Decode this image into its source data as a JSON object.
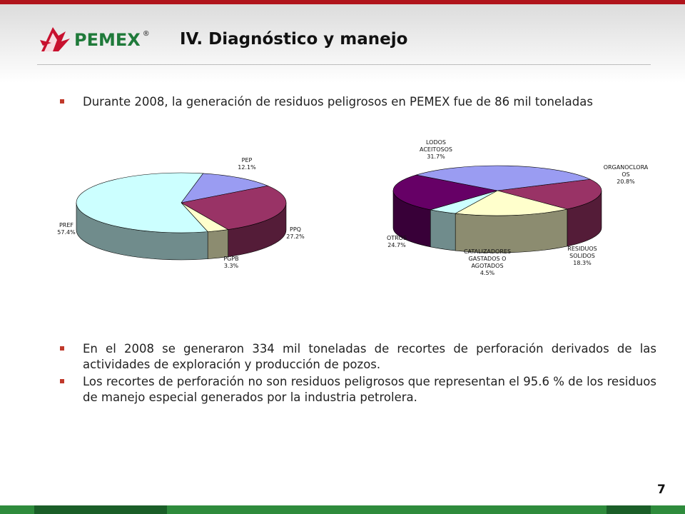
{
  "header": {
    "brand": "PEMEX",
    "reg_mark": "®",
    "title": "IV. Diagnóstico y manejo"
  },
  "bullets_top": [
    "Durante 2008, la generación de residuos peligrosos en PEMEX fue de 86 mil toneladas"
  ],
  "bullets_bottom": [
    "En el 2008 se generaron 334 mil toneladas de recortes de perforación derivados de las actividades de exploración y producción de pozos.",
    "Los recortes de perforación no son residuos peligrosos que representan el 95.6 % de los residuos de manejo especial generados por la industria petrolera."
  ],
  "page_number": "7",
  "colors": {
    "brand_green": "#1f7a3a",
    "brand_red": "#c8102e",
    "bullet": "#c0392b",
    "footer_green": "#2e8b3c"
  },
  "chart_data": [
    {
      "type": "pie",
      "title": "",
      "slices": [
        {
          "label": "PEP",
          "pct_label": "12.1%",
          "value": 12.1,
          "color": "#9a9cf2"
        },
        {
          "label": "PPQ",
          "pct_label": "27.2%",
          "value": 27.2,
          "color": "#993366"
        },
        {
          "label": "PGPB",
          "pct_label": "3.3%",
          "value": 3.3,
          "color": "#ffffcc"
        },
        {
          "label": "PREF",
          "pct_label": "57.4%",
          "value": 57.4,
          "color": "#ccffff"
        }
      ]
    },
    {
      "type": "pie",
      "title": "",
      "slices": [
        {
          "label": "ORGANOCLORADOS",
          "label_lines": [
            "ORGANOCLORA",
            "OS"
          ],
          "pct_label": "20.8%",
          "value": 20.8,
          "color": "#993366"
        },
        {
          "label": "RESIDUOS SOLIDOS",
          "label_lines": [
            "RESIDUOS",
            "SOLIDOS"
          ],
          "pct_label": "18.3%",
          "value": 18.3,
          "color": "#ffffcc"
        },
        {
          "label": "CATALIZADORES GASTADOS O AGOTADOS",
          "label_lines": [
            "CATALIZADORES",
            "GASTADOS O",
            "AGOTADOS"
          ],
          "pct_label": "4.5%",
          "value": 4.5,
          "color": "#ccffff"
        },
        {
          "label": "OTROS",
          "label_lines": [
            "OTROS"
          ],
          "pct_label": "24.7%",
          "value": 24.7,
          "color": "#660066"
        },
        {
          "label": "LODOS ACEITOSOS",
          "label_lines": [
            "LODOS",
            "ACEITOSOS"
          ],
          "pct_label": "31.7%",
          "value": 31.7,
          "color": "#9a9cf2"
        }
      ]
    }
  ]
}
